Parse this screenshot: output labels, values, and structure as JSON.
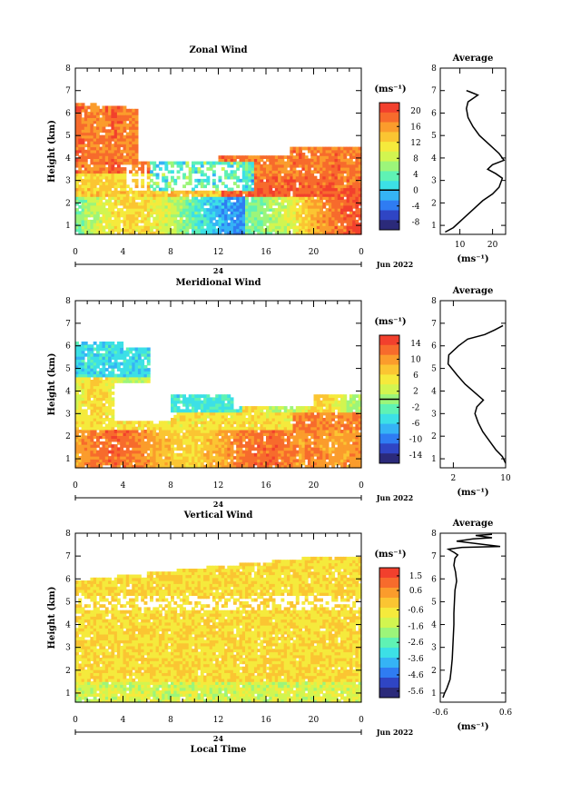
{
  "figure": {
    "time_label": "Jun 2022",
    "day_label": "24",
    "xlabel": "Local Time",
    "ylabel": "Height (km)",
    "unit_label": "(ms⁻¹)",
    "avg_title": "Average",
    "colormap": [
      "#2b2a7a",
      "#2f45c4",
      "#2f7cf2",
      "#35b3f5",
      "#3ce0e6",
      "#5ff2b4",
      "#9cf57a",
      "#d2f550",
      "#f5ea3c",
      "#fbc532",
      "#fb9c2c",
      "#f76b2c",
      "#f2402d"
    ]
  },
  "chart_data": [
    {
      "type": "heatmap",
      "title": "Zonal Wind",
      "xlabel": "",
      "ylabel": "Height (km)",
      "x_ticks": [
        "0",
        "4",
        "8",
        "12",
        "16",
        "20",
        "0"
      ],
      "y_ticks": [
        "1",
        "2",
        "3",
        "4",
        "5",
        "6",
        "7",
        "8"
      ],
      "xlim": [
        0,
        24
      ],
      "ylim": [
        0.6,
        8.0
      ],
      "colorbar": {
        "unit": "(ms⁻¹)",
        "range": [
          -10,
          22
        ],
        "ticks": [
          "20",
          "16",
          "12",
          "8",
          "4",
          "0",
          "-4",
          "-8"
        ],
        "marked_level": 0
      },
      "average_profile": {
        "title": "Average",
        "xlabel": "(ms⁻¹)",
        "x_ticks": [
          "10",
          "20"
        ],
        "xlim": [
          4,
          24
        ],
        "points": [
          [
            5.5,
            0.7
          ],
          [
            8,
            0.9
          ],
          [
            11,
            1.3
          ],
          [
            14,
            1.7
          ],
          [
            17,
            2.1
          ],
          [
            20,
            2.4
          ],
          [
            22,
            2.7
          ],
          [
            23,
            3.1
          ],
          [
            21,
            3.3
          ],
          [
            18.5,
            3.5
          ],
          [
            20,
            3.7
          ],
          [
            23.5,
            3.9
          ],
          [
            22,
            4.2
          ],
          [
            19,
            4.6
          ],
          [
            16,
            5.0
          ],
          [
            14,
            5.4
          ],
          [
            12.5,
            5.8
          ],
          [
            12,
            6.2
          ],
          [
            12.5,
            6.5
          ],
          [
            15.5,
            6.8
          ],
          [
            13,
            6.95
          ],
          [
            12,
            7.0
          ]
        ]
      }
    },
    {
      "type": "heatmap",
      "title": "Meridional Wind",
      "xlabel": "",
      "ylabel": "Height (km)",
      "x_ticks": [
        "0",
        "4",
        "8",
        "12",
        "16",
        "20",
        "0"
      ],
      "y_ticks": [
        "1",
        "2",
        "3",
        "4",
        "5",
        "6",
        "7",
        "8"
      ],
      "xlim": [
        0,
        24
      ],
      "ylim": [
        0.6,
        8.0
      ],
      "colorbar": {
        "unit": "(ms⁻¹)",
        "range": [
          -16,
          16
        ],
        "ticks": [
          "14",
          "10",
          "6",
          "2",
          "-2",
          "-6",
          "-10",
          "-14"
        ],
        "marked_level": 0
      },
      "average_profile": {
        "title": "Average",
        "xlabel": "(ms⁻¹)",
        "x_ticks": [
          "2",
          "10"
        ],
        "xlim": [
          0,
          10
        ],
        "points": [
          [
            10,
            0.8
          ],
          [
            9.5,
            1.1
          ],
          [
            8.5,
            1.4
          ],
          [
            7.5,
            1.8
          ],
          [
            6.5,
            2.2
          ],
          [
            5.8,
            2.6
          ],
          [
            5.3,
            3.0
          ],
          [
            5.6,
            3.3
          ],
          [
            6.6,
            3.6
          ],
          [
            5.4,
            3.9
          ],
          [
            3.8,
            4.3
          ],
          [
            2.6,
            4.7
          ],
          [
            1.2,
            5.2
          ],
          [
            1.3,
            5.6
          ],
          [
            2.8,
            6.0
          ],
          [
            4.2,
            6.3
          ],
          [
            6.8,
            6.5
          ],
          [
            8.3,
            6.7
          ],
          [
            9.6,
            6.9
          ]
        ]
      }
    },
    {
      "type": "heatmap",
      "title": "Vertical Wind",
      "xlabel": "Local Time",
      "ylabel": "Height (km)",
      "x_ticks": [
        "0",
        "4",
        "8",
        "12",
        "16",
        "20",
        "0"
      ],
      "y_ticks": [
        "1",
        "2",
        "3",
        "4",
        "5",
        "6",
        "7",
        "8"
      ],
      "xlim": [
        0,
        24
      ],
      "ylim": [
        0.6,
        8.0
      ],
      "colorbar": {
        "unit": "(ms⁻¹)",
        "range": [
          -6,
          2
        ],
        "ticks": [
          "1.5",
          "0.6",
          "-0.6",
          "-1.6",
          "-2.6",
          "-3.6",
          "-4.6",
          "-5.6"
        ]
      },
      "average_profile": {
        "title": "Average",
        "xlabel": "(ms⁻¹)",
        "x_ticks": [
          "-0.6",
          "0.6"
        ],
        "xlim": [
          -0.6,
          0.6
        ],
        "points": [
          [
            -0.55,
            0.8
          ],
          [
            -0.52,
            1.0
          ],
          [
            -0.48,
            1.2
          ],
          [
            -0.42,
            1.6
          ],
          [
            -0.4,
            2.0
          ],
          [
            -0.38,
            2.5
          ],
          [
            -0.37,
            3.0
          ],
          [
            -0.36,
            3.5
          ],
          [
            -0.35,
            4.0
          ],
          [
            -0.35,
            4.5
          ],
          [
            -0.34,
            5.0
          ],
          [
            -0.33,
            5.5
          ],
          [
            -0.3,
            5.9
          ],
          [
            -0.32,
            6.3
          ],
          [
            -0.35,
            6.6
          ],
          [
            -0.33,
            6.9
          ],
          [
            -0.28,
            7.05
          ],
          [
            -0.34,
            7.15
          ],
          [
            -0.45,
            7.3
          ],
          [
            -0.2,
            7.38
          ],
          [
            0.5,
            7.42
          ],
          [
            -0.3,
            7.65
          ],
          [
            0.0,
            7.75
          ],
          [
            0.35,
            7.8
          ],
          [
            0.05,
            7.9
          ],
          [
            0.35,
            7.95
          ]
        ]
      }
    }
  ]
}
